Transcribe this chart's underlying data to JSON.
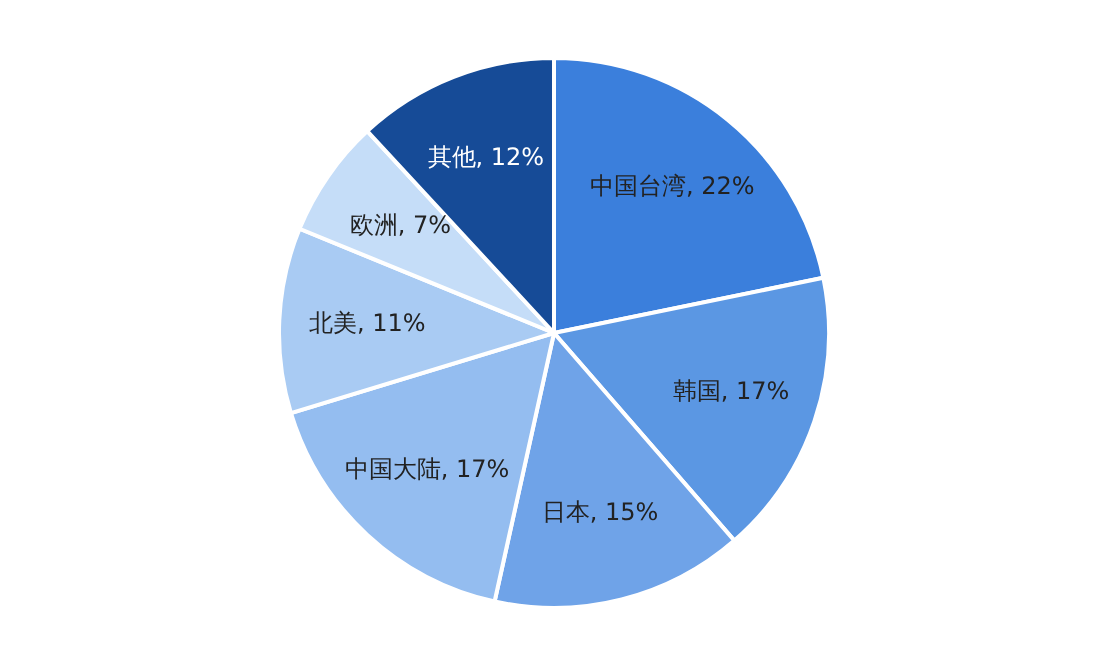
{
  "chart_data": {
    "type": "pie",
    "categories": [
      "中国台湾",
      "韩国",
      "日本",
      "中国大陆",
      "北美",
      "欧洲",
      "其他"
    ],
    "values": [
      22,
      17,
      15,
      17,
      11,
      7,
      12
    ],
    "colors": [
      "#3b7fdc",
      "#5b97e3",
      "#6fa3e8",
      "#94bdf0",
      "#a9cbf3",
      "#c5ddf8",
      "#164b97"
    ],
    "value_labels": [
      ", 22%",
      ", 17%",
      ", 15%",
      ", 17%",
      ", 11%",
      ", 7%",
      ", 12%"
    ],
    "legend": false
  }
}
